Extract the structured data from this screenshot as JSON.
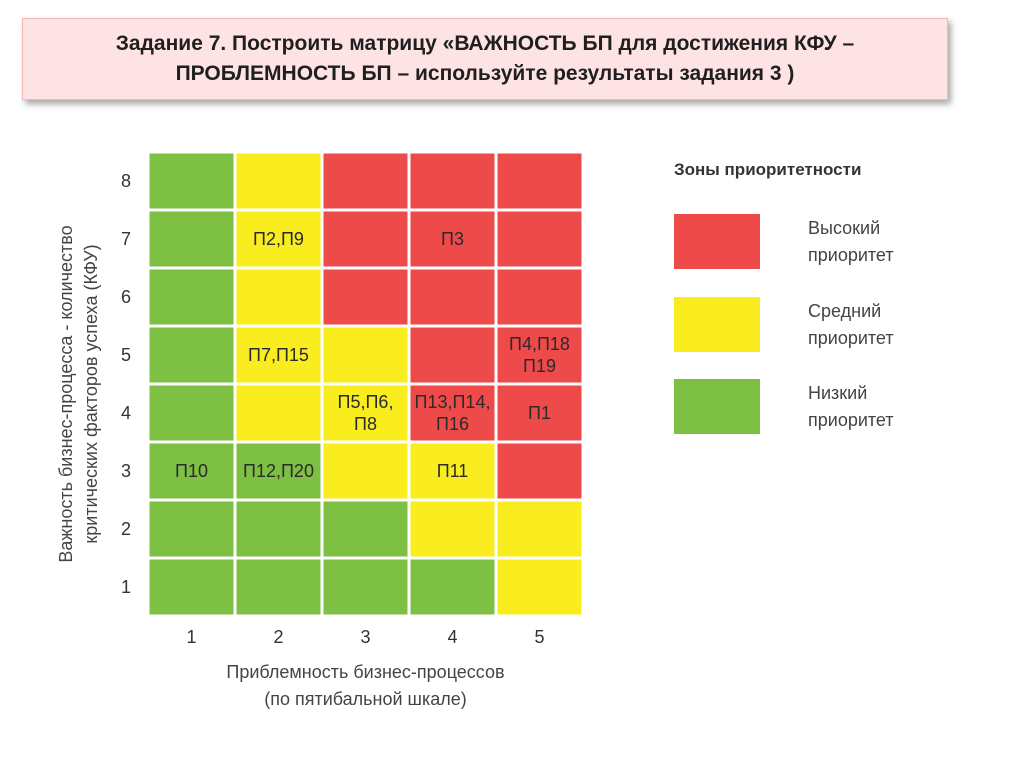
{
  "title": {
    "line1": "Задание 7. Построить матрицу «ВАЖНОСТЬ БП для достижения КФУ –",
    "line2": "ПРОБЛЕМНОСТЬ БП – используйте результаты задания 3 )"
  },
  "colors": {
    "high": "#ef4a4a",
    "medium": "#f9ec1f",
    "low": "#7dc044"
  },
  "chart_data": {
    "type": "heatmap",
    "x_categories": [
      "1",
      "2",
      "3",
      "4",
      "5"
    ],
    "y_categories": [
      "1",
      "2",
      "3",
      "4",
      "5",
      "6",
      "7",
      "8"
    ],
    "xlabel_lines": [
      "Приблемность бизнес-процессов",
      "(по пятибальной шкале)"
    ],
    "ylabel_lines": [
      "Важность бизнес-процесса - количество",
      "критических факторов успеха (КФУ)"
    ],
    "zones": [
      [
        "low",
        "low",
        "low",
        "low",
        "medium"
      ],
      [
        "low",
        "low",
        "low",
        "medium",
        "medium"
      ],
      [
        "low",
        "low",
        "medium",
        "medium",
        "high"
      ],
      [
        "low",
        "medium",
        "medium",
        "high",
        "high"
      ],
      [
        "low",
        "medium",
        "medium",
        "high",
        "high"
      ],
      [
        "low",
        "medium",
        "high",
        "high",
        "high"
      ],
      [
        "low",
        "medium",
        "high",
        "high",
        "high"
      ],
      [
        "low",
        "medium",
        "high",
        "high",
        "high"
      ]
    ],
    "labels": [
      {
        "x": 1,
        "y": 3,
        "lines": [
          "П10"
        ]
      },
      {
        "x": 2,
        "y": 3,
        "lines": [
          "П12,П20"
        ]
      },
      {
        "x": 2,
        "y": 5,
        "lines": [
          "П7,П15"
        ]
      },
      {
        "x": 2,
        "y": 7,
        "lines": [
          "П2,П9"
        ]
      },
      {
        "x": 3,
        "y": 4,
        "lines": [
          "П5,П6,",
          "П8"
        ]
      },
      {
        "x": 4,
        "y": 4,
        "lines": [
          "П13,П14,",
          "П16"
        ]
      },
      {
        "x": 4,
        "y": 3,
        "lines": [
          "П11"
        ]
      },
      {
        "x": 4,
        "y": 7,
        "lines": [
          "П3"
        ]
      },
      {
        "x": 5,
        "y": 5,
        "lines": [
          "П4,П18",
          "П19"
        ]
      },
      {
        "x": 5,
        "y": 4,
        "lines": [
          "П1"
        ]
      }
    ]
  },
  "legend": {
    "title": "Зоны приоритетности",
    "items": [
      {
        "zone": "high",
        "lines": [
          "Высокий",
          "приоритет"
        ]
      },
      {
        "zone": "medium",
        "lines": [
          "Средний",
          "приоритет"
        ]
      },
      {
        "zone": "low",
        "lines": [
          "Низкий",
          "приоритет"
        ]
      }
    ]
  }
}
